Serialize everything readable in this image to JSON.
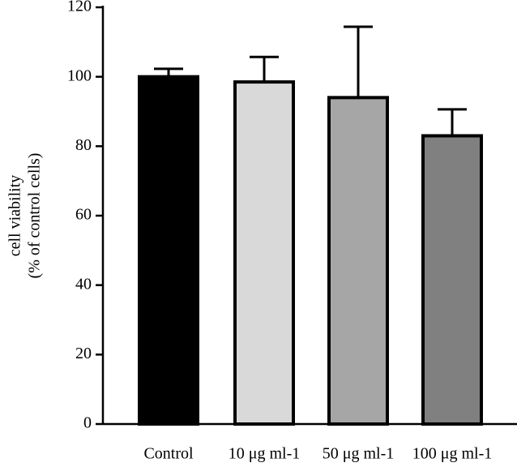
{
  "chart_data": {
    "type": "bar",
    "y_label_lines": [
      "cell viability",
      "(% of control cells)"
    ],
    "categories": [
      "Control",
      "10 μg ml-1",
      "50 μg ml-1",
      "100 μg ml-1"
    ],
    "values": [
      100,
      98.5,
      94,
      83
    ],
    "errors": [
      2.3,
      7.2,
      20.4,
      7.6
    ],
    "colors": [
      "#000000",
      "#d9d9d9",
      "#a6a6a6",
      "#808080"
    ],
    "ylim": [
      0,
      120
    ],
    "yticks": [
      0,
      20,
      40,
      60,
      80,
      100,
      120
    ]
  }
}
